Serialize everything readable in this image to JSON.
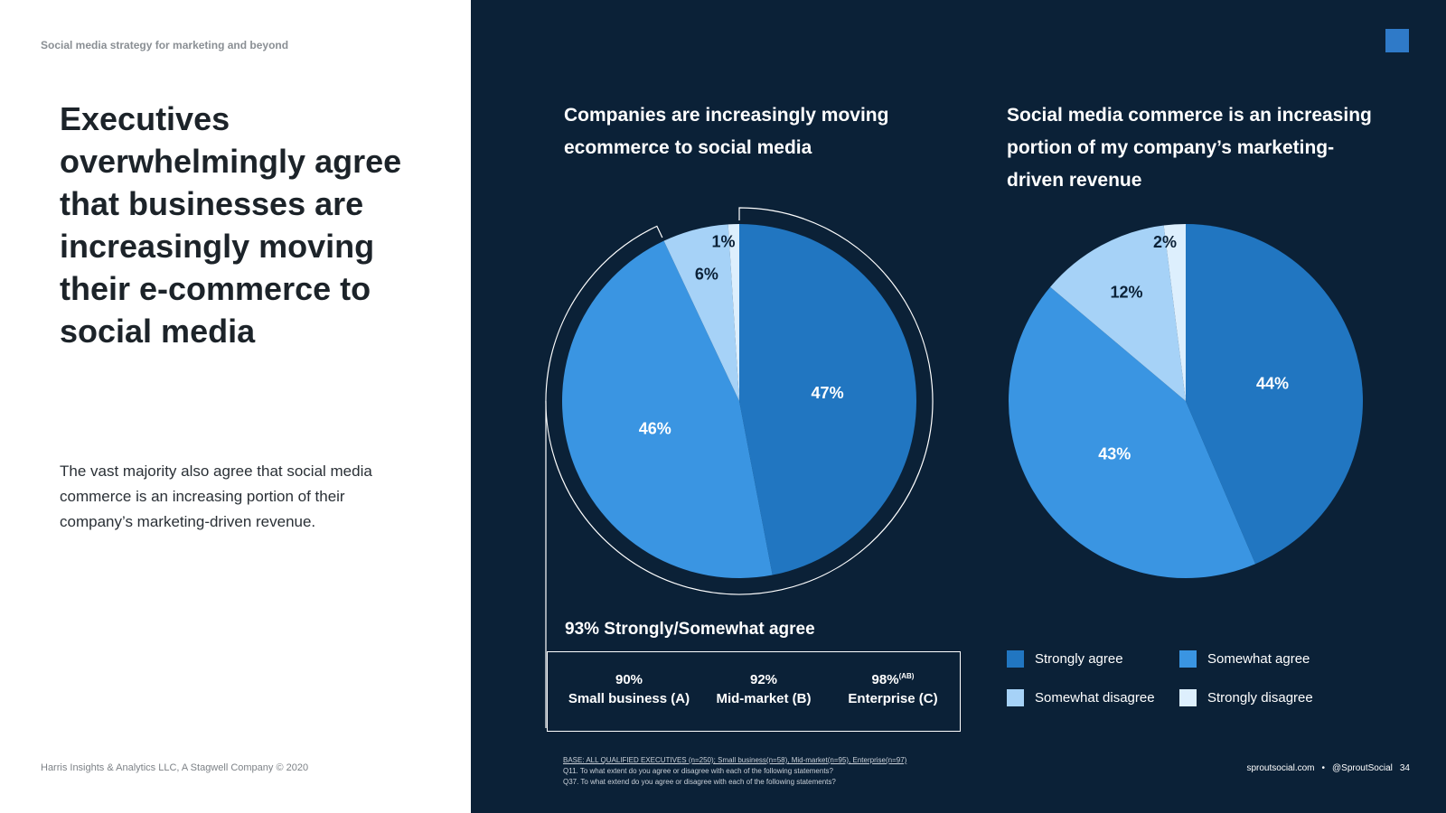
{
  "kicker": "Social media strategy for marketing and beyond",
  "headline": "Executives overwhelmingly agree that businesses are increasingly moving their e-commerce to social media",
  "body": "The vast majority also agree that social media commerce is an increasing portion of their company’s marketing-driven revenue.",
  "copyright": "Harris Insights & Analytics LLC, A Stagwell Company © 2020",
  "colors": {
    "panel": "#0b2137",
    "strongly_agree": "#2176c1",
    "somewhat_agree": "#3a95e2",
    "somewhat_disagree": "#a6d2f7",
    "strongly_disagree": "#ddeffd"
  },
  "chart_data": [
    {
      "type": "pie",
      "title": "Companies are increasingly moving ecommerce to social media",
      "categories": [
        "Strongly agree",
        "Somewhat agree",
        "Somewhat disagree",
        "Strongly disagree"
      ],
      "values": [
        47,
        46,
        6,
        1
      ],
      "labels": [
        "47%",
        "46%",
        "6%",
        "1%"
      ],
      "bracket_label": "93% Strongly/Somewhat agree"
    },
    {
      "type": "pie",
      "title": "Social media commerce is an increasing portion of my company’s marketing-driven revenue",
      "categories": [
        "Strongly agree",
        "Somewhat agree",
        "Somewhat disagree",
        "Strongly disagree"
      ],
      "values": [
        44,
        43,
        12,
        2
      ],
      "labels": [
        "44%",
        "43%",
        "12%",
        "2%"
      ]
    }
  ],
  "segments": [
    {
      "value": "90%",
      "sup": "",
      "label": "Small business (A)"
    },
    {
      "value": "92%",
      "sup": "",
      "label": "Mid-market (B)"
    },
    {
      "value": "98%",
      "sup": "(AB)",
      "label": "Enterprise (C)"
    }
  ],
  "legend": [
    "Strongly agree",
    "Somewhat agree",
    "Somewhat disagree",
    "Strongly disagree"
  ],
  "footnotes": {
    "base": "BASE: ALL QUALIFIED EXECUTIVES (n=250); Small business(n=58), Mid-market(n=95), Enterprise(n=97)",
    "q11": "Q11. To what extent do you agree or disagree with each of the following statements?",
    "q37": "Q37. To what extend do you agree or disagree with each of the following statements?"
  },
  "footer": {
    "site": "sproutsocial.com",
    "dot": "•",
    "handle": "@SproutSocial",
    "page": "34"
  }
}
